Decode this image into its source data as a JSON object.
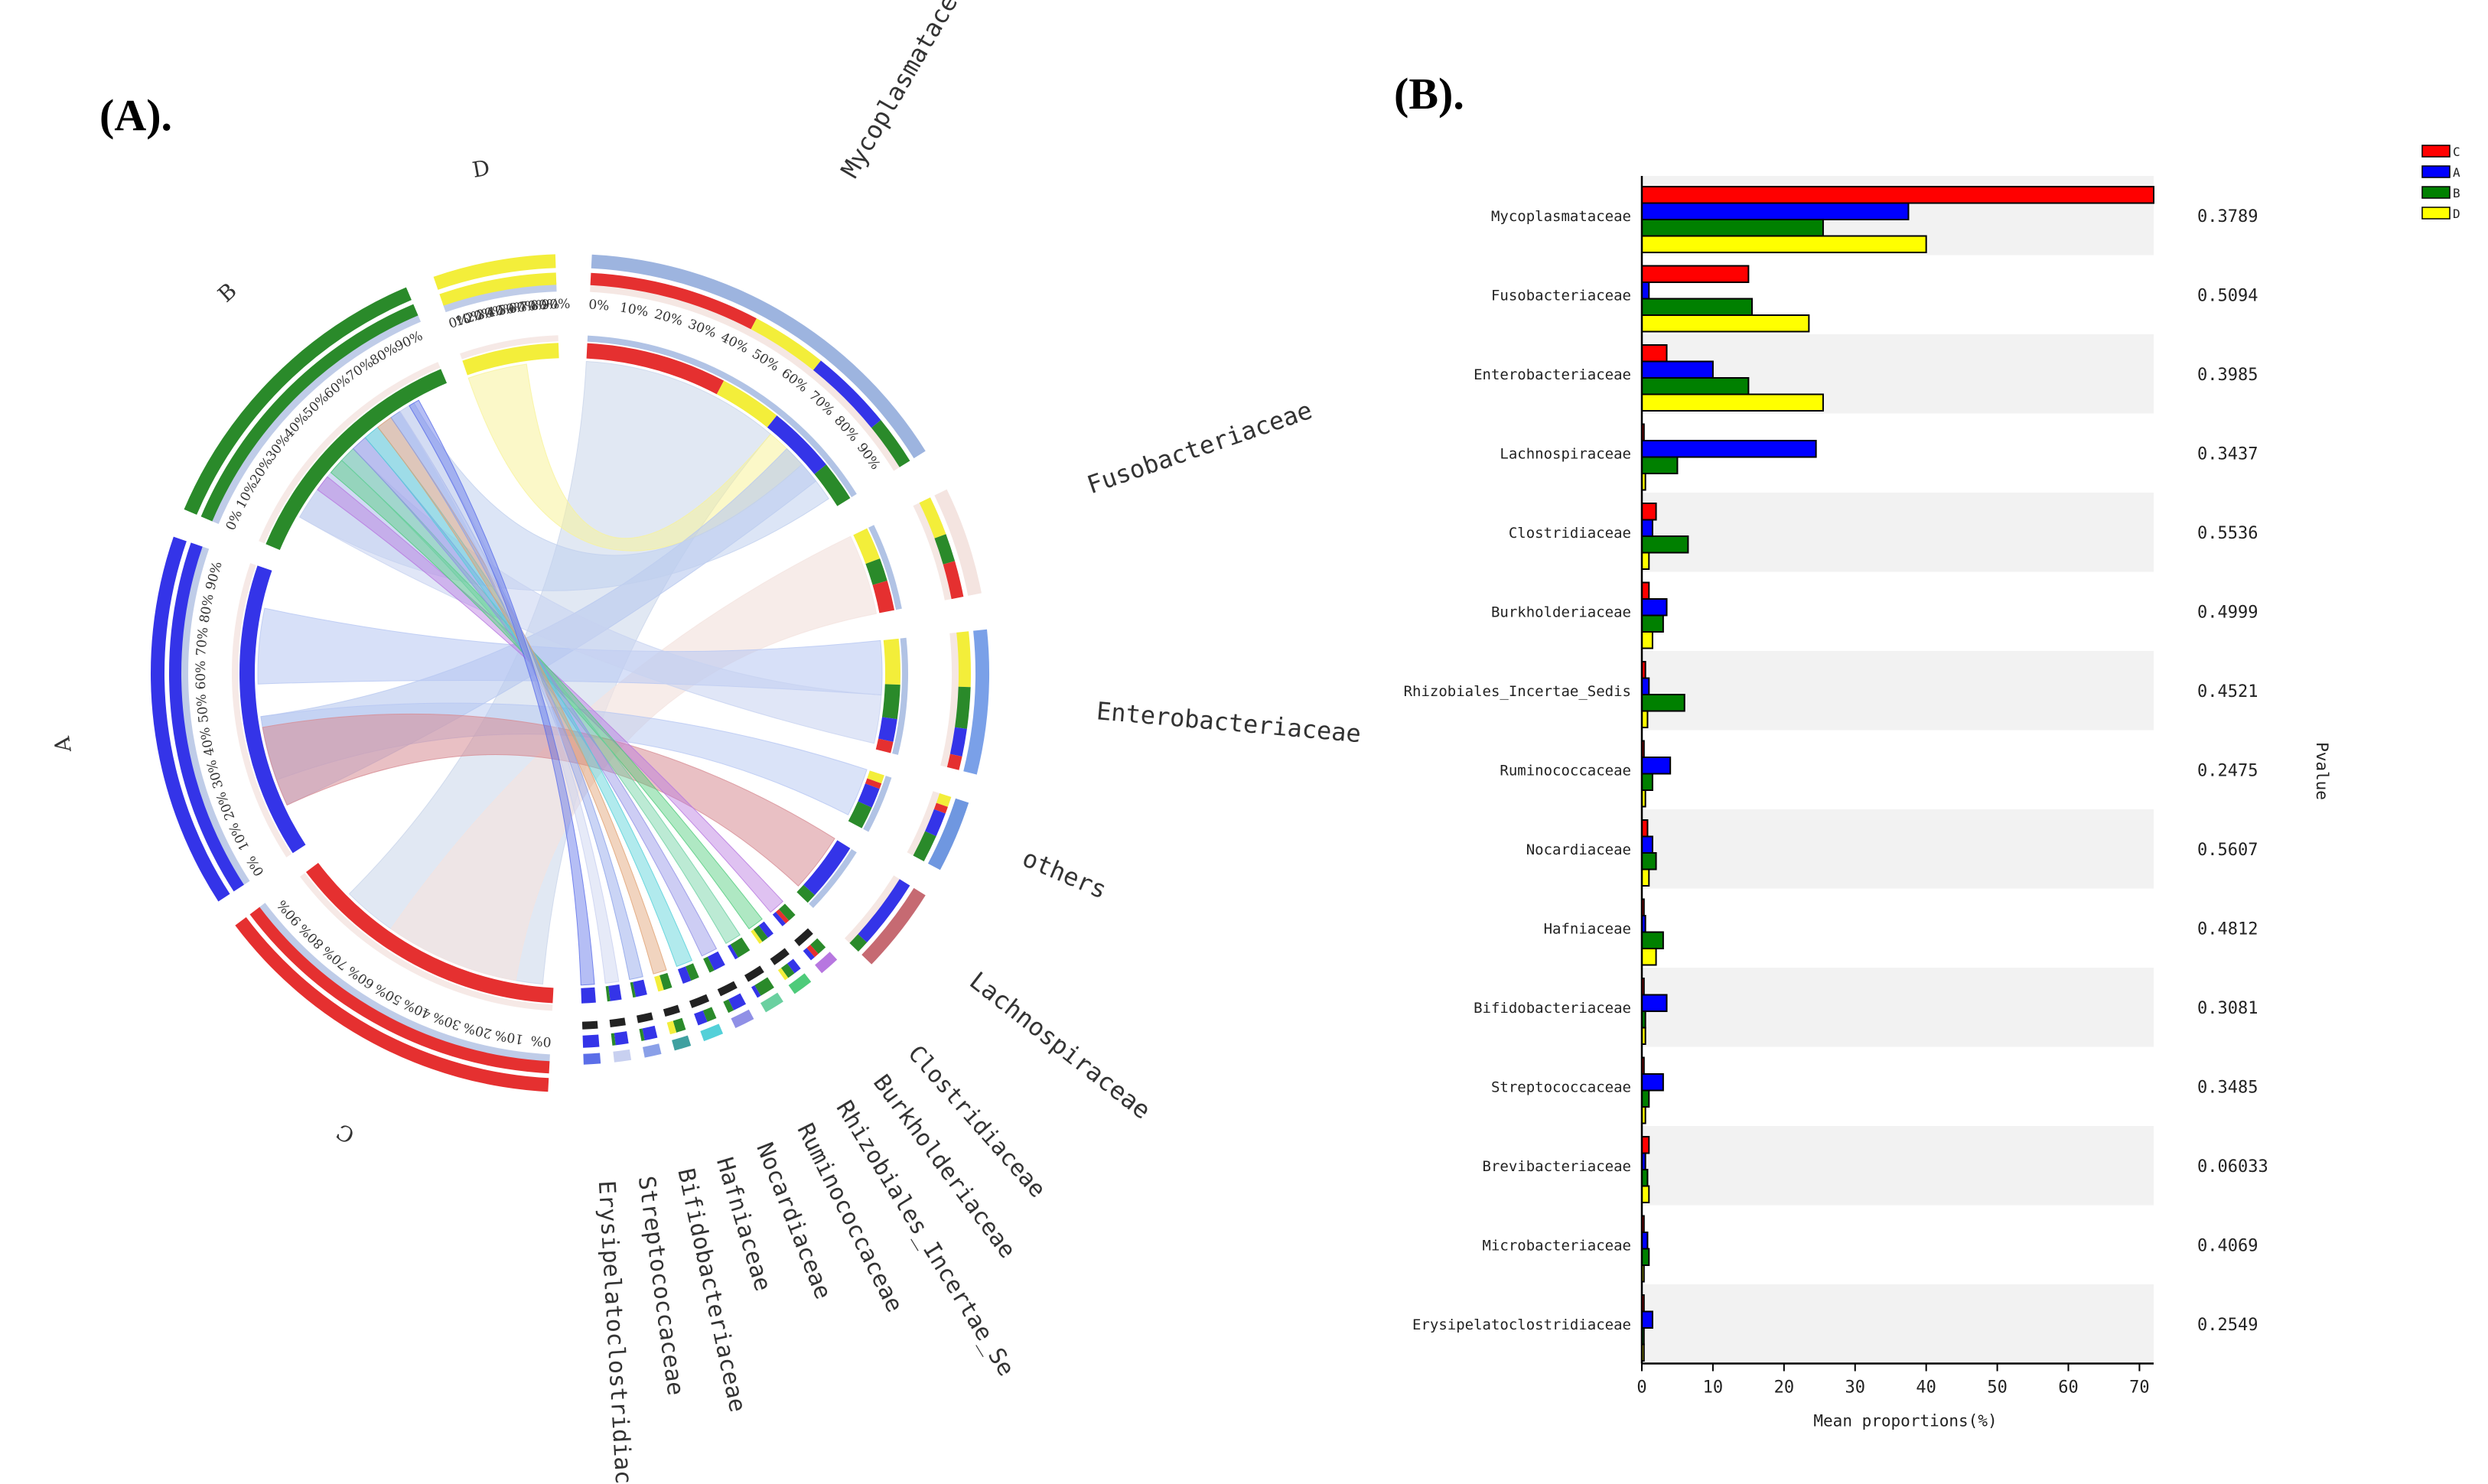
{
  "panels": {
    "a_label": "(A).",
    "b_label": "(B)."
  },
  "chart_data": [
    {
      "type": "chord",
      "id": "A",
      "groups": [
        "D",
        "B",
        "A",
        "C"
      ],
      "families": [
        "Mycoplasmataceae",
        "Fusobacteriaceae",
        "Enterobacteriaceae",
        "others",
        "Lachnospiraceae",
        "Clostridiaceae",
        "Burkholderiaceae",
        "Rhizobiales_Incertae_Se",
        "Ruminococcaceae",
        "Nocardiaceae",
        "Hafniaceae",
        "Bifidobacteriaceae",
        "Streptococcaceae",
        "Erysipelatoclostridiac"
      ],
      "percent_ticks": [
        "0%",
        "10%",
        "20%",
        "30%",
        "40%",
        "50%",
        "60%",
        "70%",
        "80%",
        "90%"
      ]
    },
    {
      "type": "bar",
      "id": "B",
      "orientation": "horizontal",
      "categories": [
        "Mycoplasmataceae",
        "Fusobacteriaceae",
        "Enterobacteriaceae",
        "Lachnospiraceae",
        "Clostridiaceae",
        "Burkholderiaceae",
        "Rhizobiales_Incertae_Sedis",
        "Ruminococcaceae",
        "Nocardiaceae",
        "Hafniaceae",
        "Bifidobacteriaceae",
        "Streptococcaceae",
        "Brevibacteriaceae",
        "Microbacteriaceae",
        "Erysipelatoclostridiaceae"
      ],
      "series": [
        {
          "name": "C",
          "color": "#ff0000",
          "values": [
            72,
            15,
            3.5,
            0.3,
            2,
            1,
            0.5,
            0.3,
            0.8,
            0.3,
            0.3,
            0.3,
            1,
            0.3,
            0.3
          ]
        },
        {
          "name": "A",
          "color": "#0000ff",
          "values": [
            37.5,
            1,
            10,
            24.5,
            1.5,
            3.5,
            1,
            4,
            1.5,
            0.5,
            3.5,
            3,
            0.5,
            0.8,
            1.5
          ]
        },
        {
          "name": "B",
          "color": "#008000",
          "values": [
            25.5,
            15.5,
            15,
            5,
            6.5,
            3,
            6,
            1.5,
            2,
            3,
            0.5,
            1,
            0.8,
            1,
            0.3
          ]
        },
        {
          "name": "D",
          "color": "#ffff00",
          "values": [
            40,
            23.5,
            25.5,
            0.5,
            1,
            1.5,
            0.8,
            0.5,
            1,
            2,
            0.5,
            0.5,
            1,
            0.3,
            0.3
          ]
        }
      ],
      "pvalues": [
        "0.3789",
        "0.5094",
        "0.3985",
        "0.3437",
        "0.5536",
        "0.4999",
        "0.4521",
        "0.2475",
        "0.5607",
        "0.4812",
        "0.3081",
        "0.3485",
        "0.06033",
        "0.4069",
        "0.2549"
      ],
      "xlabel": "Mean proportions(%)",
      "ylabel_right": "Pvalue",
      "xlim": [
        0,
        72
      ],
      "xticks": [
        0,
        10,
        20,
        30,
        40,
        50,
        60,
        70
      ],
      "legend": "top-right"
    }
  ]
}
